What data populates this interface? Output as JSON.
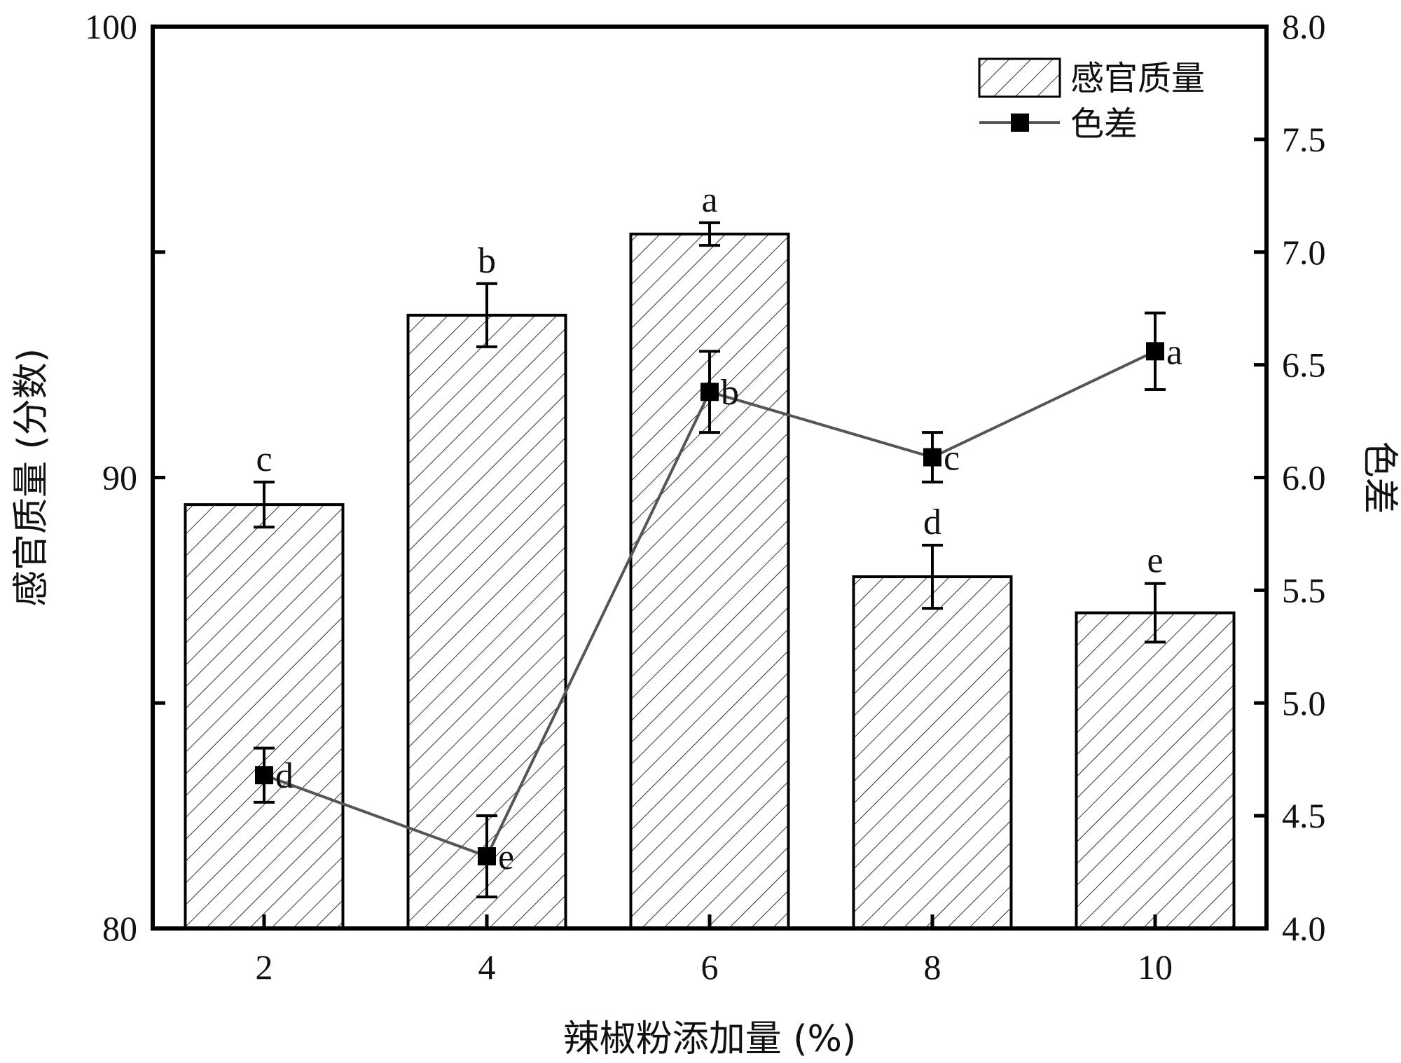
{
  "chart_data": {
    "type": "bar+line",
    "x": [
      "2",
      "4",
      "6",
      "8",
      "10"
    ],
    "xlabel": "辣椒粉添加量 (%)",
    "ylabel_left": "感官质量 (分数)",
    "ylabel_right": "色差",
    "ylim_left": [
      80,
      100
    ],
    "ylim_right": [
      4.0,
      8.0
    ],
    "left_ticks": [
      "80",
      "90",
      "100"
    ],
    "right_ticks": [
      "4.0",
      "4.5",
      "5.0",
      "5.5",
      "6.0",
      "6.5",
      "7.0",
      "7.5",
      "8.0"
    ],
    "grid": false,
    "legend_position": "top-right",
    "series": [
      {
        "name": "感官质量",
        "kind": "bar",
        "axis": "left",
        "pattern": "diagonal-hatch",
        "values": [
          89.4,
          93.6,
          95.4,
          87.8,
          87.0
        ],
        "errors": [
          0.5,
          0.7,
          0.25,
          0.7,
          0.65
        ],
        "labels": [
          "c",
          "b",
          "a",
          "d",
          "e"
        ]
      },
      {
        "name": "色差",
        "kind": "line",
        "axis": "right",
        "marker": "square",
        "color": "#555555",
        "values": [
          4.68,
          4.32,
          6.38,
          6.09,
          6.56
        ],
        "errors": [
          0.12,
          0.18,
          0.18,
          0.11,
          0.17
        ],
        "labels": [
          "d",
          "e",
          "b",
          "c",
          "a"
        ]
      }
    ]
  }
}
